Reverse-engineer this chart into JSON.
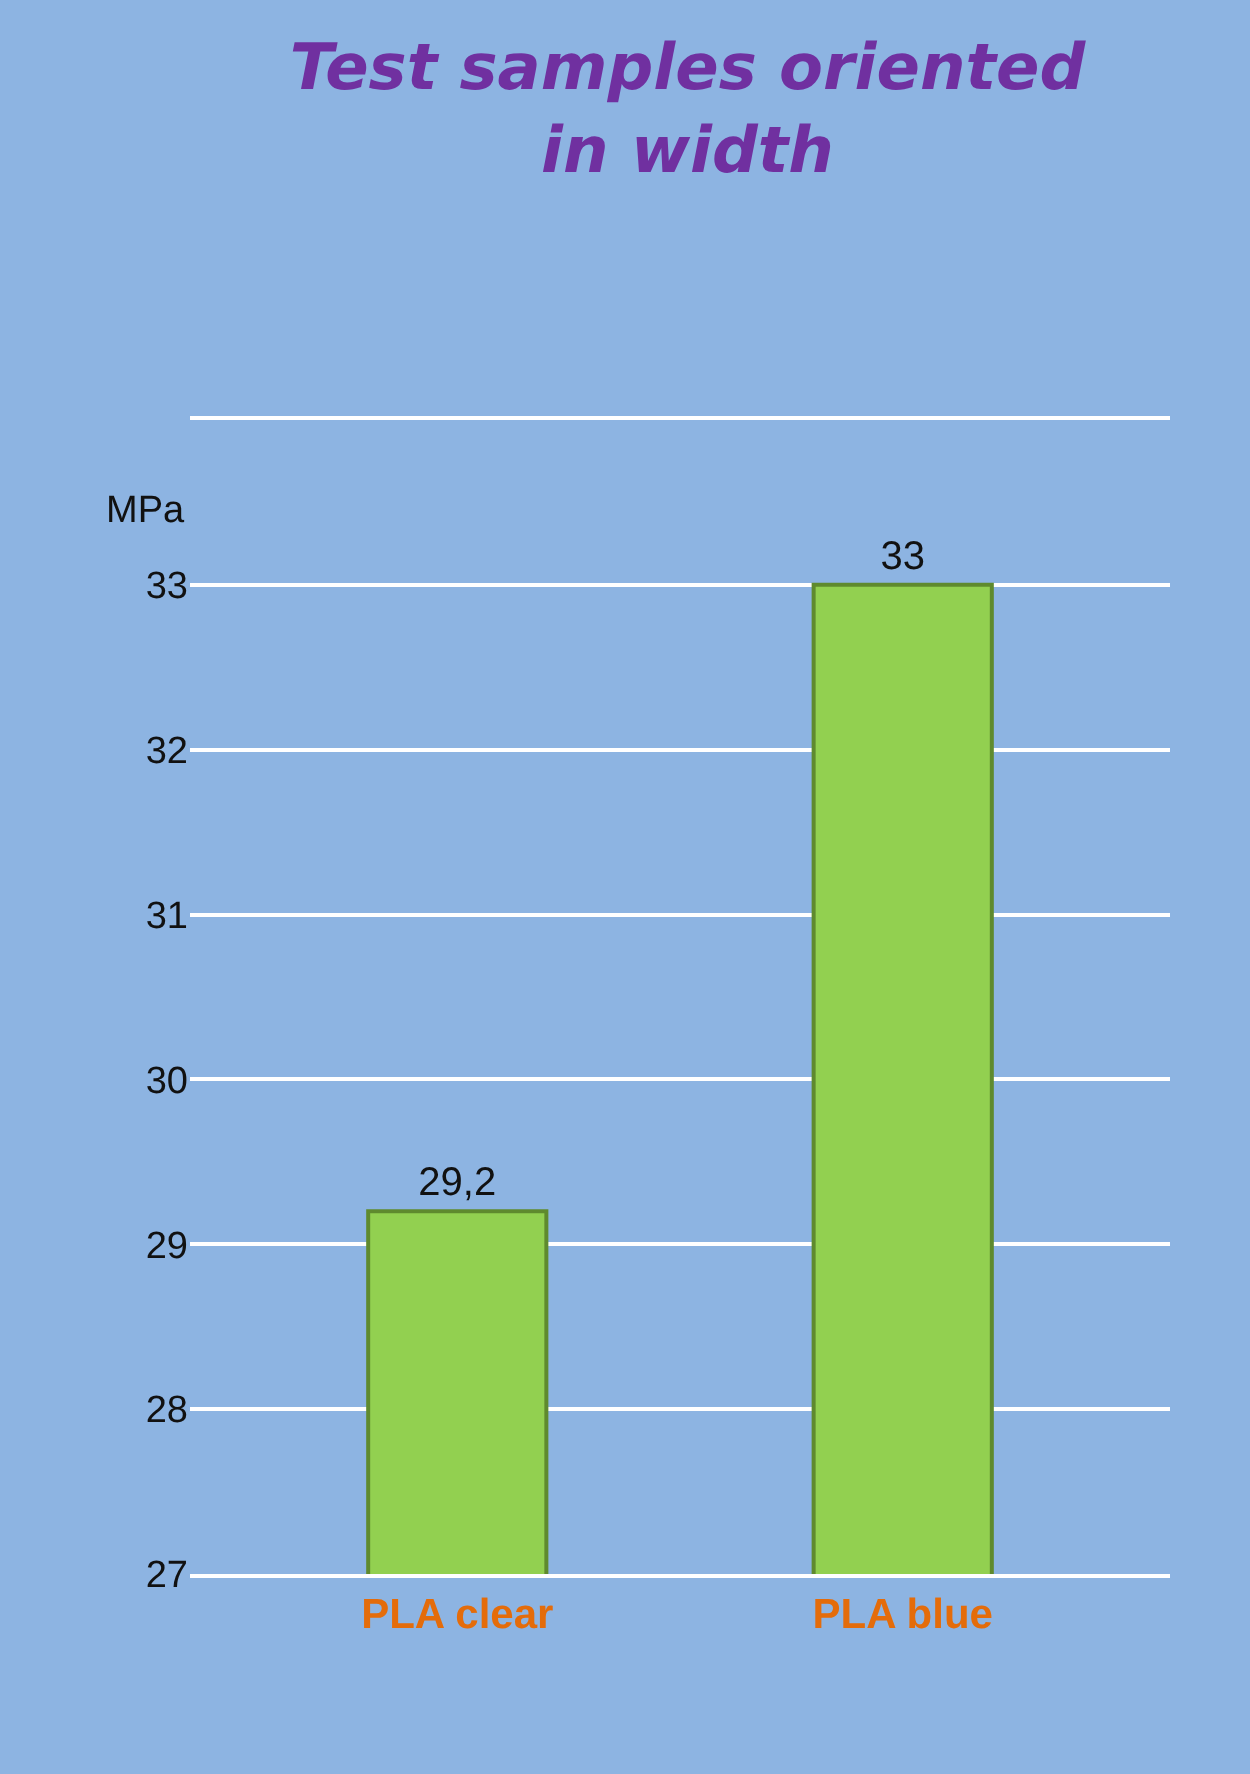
{
  "chart_data": {
    "type": "bar",
    "title": "Test samples oriented in width",
    "ylabel": "MPa",
    "categories": [
      "PLA clear",
      "PLA blue"
    ],
    "values": [
      29.2,
      33
    ],
    "value_labels": [
      "29,2",
      "33"
    ],
    "color": "#92d050",
    "ylim": [
      27,
      34
    ],
    "yticks": [
      27,
      28,
      29,
      30,
      31,
      32,
      33,
      {
        "value": 34,
        "label": null
      }
    ],
    "grid": true
  }
}
